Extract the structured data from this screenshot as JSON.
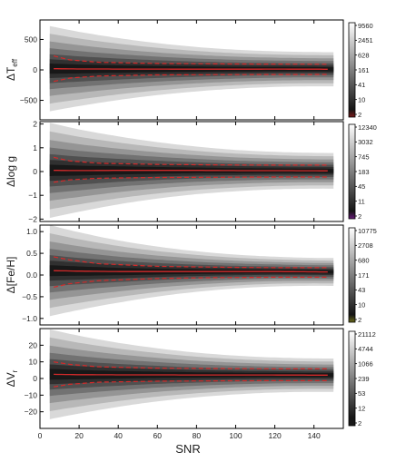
{
  "chart_data": {
    "type": "heatmap",
    "shared_x": {
      "label": "SNR",
      "lim": [
        0,
        155
      ],
      "ticks": [
        0,
        20,
        40,
        60,
        80,
        100,
        120,
        140
      ]
    },
    "density_max_snr": 150,
    "panels": [
      {
        "id": "teff",
        "ylabel_main": "ΔT",
        "ylabel_sub": "eff",
        "ylim": [
          -820,
          820
        ],
        "yticks": [
          -500,
          0,
          500
        ],
        "half_width_start": 700,
        "half_width_end": 280,
        "colorbar_ticks": [
          "9560",
          "2451",
          "628",
          "161",
          "41",
          "10",
          "2"
        ],
        "colorbar_low": "#7a1a1a",
        "median": [
          [
            7,
            20
          ],
          [
            20,
            15
          ],
          [
            40,
            14
          ],
          [
            60,
            13
          ],
          [
            80,
            12
          ],
          [
            100,
            12
          ],
          [
            120,
            13
          ],
          [
            140,
            12
          ],
          [
            148,
            10
          ]
        ],
        "band_upper": [
          [
            7,
            230
          ],
          [
            15,
            165
          ],
          [
            30,
            125
          ],
          [
            60,
            105
          ],
          [
            90,
            98
          ],
          [
            120,
            95
          ],
          [
            148,
            92
          ]
        ],
        "band_lower": [
          [
            7,
            -190
          ],
          [
            15,
            -135
          ],
          [
            30,
            -100
          ],
          [
            60,
            -82
          ],
          [
            90,
            -78
          ],
          [
            120,
            -76
          ],
          [
            148,
            -75
          ]
        ]
      },
      {
        "id": "logg",
        "ylabel_main": "Δlog g",
        "ylabel_sub": "",
        "ylim": [
          -2.1,
          2.1
        ],
        "yticks": [
          -2,
          -1,
          0,
          1,
          2
        ],
        "half_width_start": 2.0,
        "half_width_end": 0.75,
        "colorbar_ticks": [
          "12340",
          "3032",
          "745",
          "183",
          "45",
          "11",
          "2"
        ],
        "colorbar_low": "#6a1a7a",
        "median": [
          [
            7,
            0.05
          ],
          [
            20,
            0.04
          ],
          [
            40,
            0.05
          ],
          [
            60,
            0.05
          ],
          [
            80,
            0.05
          ],
          [
            100,
            0.04
          ],
          [
            120,
            0.04
          ],
          [
            148,
            0.03
          ]
        ],
        "band_upper": [
          [
            7,
            0.6
          ],
          [
            15,
            0.45
          ],
          [
            30,
            0.35
          ],
          [
            60,
            0.3
          ],
          [
            90,
            0.28
          ],
          [
            120,
            0.27
          ],
          [
            148,
            0.27
          ]
        ],
        "band_lower": [
          [
            7,
            -0.45
          ],
          [
            15,
            -0.35
          ],
          [
            30,
            -0.28
          ],
          [
            60,
            -0.25
          ],
          [
            90,
            -0.24
          ],
          [
            120,
            -0.23
          ],
          [
            148,
            -0.23
          ]
        ]
      },
      {
        "id": "feh",
        "ylabel_main": "Δ[Fe/H]",
        "ylabel_sub": "",
        "ylim": [
          -1.15,
          1.15
        ],
        "yticks": [
          -1.0,
          -0.5,
          0.0,
          0.5,
          1.0
        ],
        "half_width_start": 1.05,
        "half_width_end": 0.32,
        "colorbar_ticks": [
          "10775",
          "2708",
          "680",
          "171",
          "43",
          "10",
          "2"
        ],
        "colorbar_low": "#6a6a1a",
        "median": [
          [
            7,
            0.1
          ],
          [
            20,
            0.09
          ],
          [
            40,
            0.08
          ],
          [
            60,
            0.08
          ],
          [
            80,
            0.08
          ],
          [
            100,
            0.08
          ],
          [
            120,
            0.08
          ],
          [
            148,
            0.07
          ]
        ],
        "band_upper": [
          [
            7,
            0.42
          ],
          [
            15,
            0.35
          ],
          [
            30,
            0.26
          ],
          [
            60,
            0.2
          ],
          [
            90,
            0.18
          ],
          [
            120,
            0.17
          ],
          [
            148,
            0.17
          ]
        ],
        "band_lower": [
          [
            7,
            -0.28
          ],
          [
            15,
            -0.2
          ],
          [
            30,
            -0.13
          ],
          [
            60,
            -0.08
          ],
          [
            90,
            -0.06
          ],
          [
            120,
            -0.05
          ],
          [
            148,
            -0.05
          ]
        ]
      },
      {
        "id": "vr",
        "ylabel_main": "ΔV",
        "ylabel_sub": "r",
        "ylim": [
          -30,
          30
        ],
        "yticks": [
          -20,
          -10,
          0,
          10,
          20
        ],
        "half_width_start": 27,
        "half_width_end": 10,
        "colorbar_ticks": [
          "21112",
          "4744",
          "1066",
          "239",
          "53",
          "12",
          "2"
        ],
        "colorbar_low": "#1a1a1a",
        "median": [
          [
            7,
            2.5
          ],
          [
            20,
            2.3
          ],
          [
            40,
            2.2
          ],
          [
            60,
            2.2
          ],
          [
            80,
            2.1
          ],
          [
            100,
            2.1
          ],
          [
            120,
            2.1
          ],
          [
            148,
            2.0
          ]
        ],
        "band_upper": [
          [
            7,
            10
          ],
          [
            15,
            8.5
          ],
          [
            30,
            7
          ],
          [
            60,
            6.2
          ],
          [
            90,
            6
          ],
          [
            120,
            5.8
          ],
          [
            148,
            5.8
          ]
        ],
        "band_lower": [
          [
            7,
            -5
          ],
          [
            15,
            -3.5
          ],
          [
            30,
            -2.2
          ],
          [
            60,
            -1.6
          ],
          [
            90,
            -1.4
          ],
          [
            120,
            -1.3
          ],
          [
            148,
            -1.3
          ]
        ]
      }
    ],
    "colors": {
      "median_line": "#d42a2a",
      "band_line": "#d42a2a",
      "axis": "#000000"
    }
  }
}
